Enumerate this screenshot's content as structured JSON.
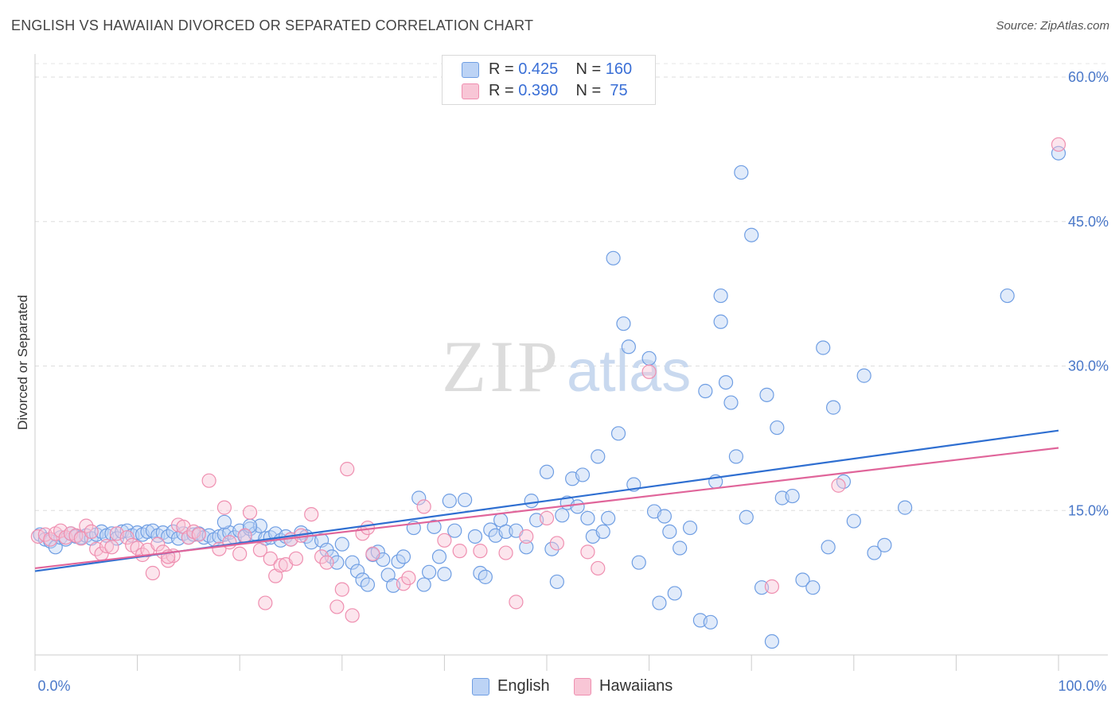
{
  "title": "ENGLISH VS HAWAIIAN DIVORCED OR SEPARATED CORRELATION CHART",
  "source": "Source: ZipAtlas.com",
  "watermark": {
    "zip": "ZIP",
    "atlas": "atlas"
  },
  "legend": {
    "english": {
      "r_label": "R = ",
      "r_value": "0.425",
      "n_label": "N = ",
      "n_value": "160"
    },
    "hawaiians": {
      "r_label": "R = ",
      "r_value": "0.390",
      "n_label": "N = ",
      "n_value": " 75"
    }
  },
  "chart_data": {
    "type": "scatter",
    "title": "ENGLISH VS HAWAIIAN DIVORCED OR SEPARATED CORRELATION CHART",
    "xlabel": "",
    "ylabel": "Divorced or Separated",
    "xlim": [
      0,
      100
    ],
    "ylim": [
      0,
      60
    ],
    "x_tick_labels": [
      "0.0%",
      "100.0%"
    ],
    "y_ticks": [
      15,
      30,
      45,
      60
    ],
    "y_tick_labels": [
      "15.0%",
      "30.0%",
      "45.0%",
      "60.0%"
    ],
    "grid": true,
    "legend_position": "top-center",
    "series": [
      {
        "name": "English",
        "color": "#6f9ee3",
        "trend": {
          "x": [
            0,
            100
          ],
          "y": [
            8.7,
            23.3
          ]
        },
        "points": [
          [
            0.5,
            12.5
          ],
          [
            1,
            12
          ],
          [
            1.5,
            11.8
          ],
          [
            2,
            11.2
          ],
          [
            2.5,
            12.2
          ],
          [
            3,
            12
          ],
          [
            3.5,
            12.6
          ],
          [
            4,
            12.3
          ],
          [
            4.5,
            12.2
          ],
          [
            5,
            12.4
          ],
          [
            5.5,
            12.1
          ],
          [
            6,
            12.5
          ],
          [
            6.5,
            12.8
          ],
          [
            7,
            12.4
          ],
          [
            7.5,
            12.6
          ],
          [
            8,
            12.1
          ],
          [
            8.5,
            12.8
          ],
          [
            9,
            12.9
          ],
          [
            9.5,
            12.4
          ],
          [
            10,
            12.7
          ],
          [
            10.5,
            12.5
          ],
          [
            11,
            12.8
          ],
          [
            11.5,
            12.9
          ],
          [
            12,
            12.4
          ],
          [
            12.5,
            12.7
          ],
          [
            13,
            12.3
          ],
          [
            13.5,
            12.8
          ],
          [
            14,
            12.1
          ],
          [
            14.5,
            12.6
          ],
          [
            15,
            12.2
          ],
          [
            15.5,
            12.5
          ],
          [
            16,
            12.6
          ],
          [
            16.5,
            12.2
          ],
          [
            17,
            12.4
          ],
          [
            17.5,
            12.0
          ],
          [
            18,
            12.3
          ],
          [
            18.5,
            12.5
          ],
          [
            19,
            12.7
          ],
          [
            19.5,
            12.2
          ],
          [
            20,
            12.9
          ],
          [
            20.5,
            12.3
          ],
          [
            21,
            13.1
          ],
          [
            21.5,
            12.6
          ],
          [
            22,
            13.4
          ],
          [
            22.5,
            12.1
          ],
          [
            23,
            12.2
          ],
          [
            23.5,
            12.6
          ],
          [
            24,
            11.9
          ],
          [
            24.5,
            12.3
          ],
          [
            25,
            12.0
          ],
          [
            26,
            12.7
          ],
          [
            26.5,
            12.3
          ],
          [
            27,
            11.7
          ],
          [
            28,
            11.9
          ],
          [
            28.5,
            10.9
          ],
          [
            29,
            10.2
          ],
          [
            29.5,
            9.6
          ],
          [
            30,
            11.5
          ],
          [
            31,
            9.6
          ],
          [
            31.5,
            8.7
          ],
          [
            32,
            7.8
          ],
          [
            32.5,
            7.3
          ],
          [
            33,
            10.4
          ],
          [
            33.5,
            10.7
          ],
          [
            34,
            9.9
          ],
          [
            34.5,
            8.3
          ],
          [
            35,
            7.2
          ],
          [
            35.5,
            9.7
          ],
          [
            36,
            10.2
          ],
          [
            37,
            13.2
          ],
          [
            37.5,
            16.3
          ],
          [
            38,
            7.3
          ],
          [
            38.5,
            8.6
          ],
          [
            39,
            13.3
          ],
          [
            39.5,
            10.2
          ],
          [
            40,
            8.4
          ],
          [
            40.5,
            16.0
          ],
          [
            41,
            12.9
          ],
          [
            42,
            16.1
          ],
          [
            43,
            12.3
          ],
          [
            43.5,
            8.5
          ],
          [
            44,
            8.1
          ],
          [
            44.5,
            13.0
          ],
          [
            45,
            12.4
          ],
          [
            45.5,
            14.0
          ],
          [
            46,
            12.8
          ],
          [
            47,
            12.9
          ],
          [
            48,
            11.2
          ],
          [
            48.5,
            16.0
          ],
          [
            49,
            14.0
          ],
          [
            50,
            19.0
          ],
          [
            50.5,
            11.0
          ],
          [
            51,
            7.6
          ],
          [
            51.5,
            14.5
          ],
          [
            52,
            15.8
          ],
          [
            52.5,
            18.3
          ],
          [
            53,
            15.4
          ],
          [
            53.5,
            18.7
          ],
          [
            54,
            14.2
          ],
          [
            54.5,
            12.3
          ],
          [
            55,
            20.6
          ],
          [
            55.5,
            12.8
          ],
          [
            56,
            14.2
          ],
          [
            57,
            23.0
          ],
          [
            57.5,
            34.4
          ],
          [
            58,
            32.0
          ],
          [
            58.5,
            17.7
          ],
          [
            59,
            9.6
          ],
          [
            60,
            30.8
          ],
          [
            60.5,
            14.9
          ],
          [
            61,
            5.4
          ],
          [
            61.5,
            14.4
          ],
          [
            62,
            12.8
          ],
          [
            62.5,
            6.4
          ],
          [
            63,
            11.1
          ],
          [
            64,
            13.2
          ],
          [
            65,
            3.6
          ],
          [
            65.5,
            27.4
          ],
          [
            66,
            3.4
          ],
          [
            66.5,
            18.0
          ],
          [
            67,
            34.6
          ],
          [
            67.5,
            28.3
          ],
          [
            68,
            26.2
          ],
          [
            68.5,
            20.6
          ],
          [
            69,
            50.1
          ],
          [
            69.5,
            14.3
          ],
          [
            70,
            43.6
          ],
          [
            71,
            7.0
          ],
          [
            71.5,
            27.0
          ],
          [
            72,
            1.4
          ],
          [
            72.5,
            23.6
          ],
          [
            73,
            16.3
          ],
          [
            74,
            16.5
          ],
          [
            75,
            7.8
          ],
          [
            76,
            7.0
          ],
          [
            77,
            31.9
          ],
          [
            77.5,
            11.2
          ],
          [
            78,
            25.7
          ],
          [
            79,
            18.0
          ],
          [
            80,
            13.9
          ],
          [
            81,
            29.0
          ],
          [
            82,
            10.6
          ],
          [
            83,
            11.4
          ],
          [
            85,
            15.3
          ],
          [
            56.5,
            41.2
          ],
          [
            67,
            37.3
          ],
          [
            95,
            37.3
          ],
          [
            100,
            52.1
          ],
          [
            18.5,
            13.8
          ],
          [
            21,
            13.4
          ]
        ]
      },
      {
        "name": "Hawaiians",
        "color": "#ef8fb0",
        "trend": {
          "x": [
            0,
            100
          ],
          "y": [
            9.0,
            21.5
          ]
        },
        "points": [
          [
            0.3,
            12.3
          ],
          [
            1,
            12.5
          ],
          [
            1.5,
            12.0
          ],
          [
            2,
            12.6
          ],
          [
            2.5,
            12.9
          ],
          [
            3,
            12.2
          ],
          [
            3.5,
            12.6
          ],
          [
            4,
            12.4
          ],
          [
            4.5,
            12.1
          ],
          [
            5,
            13.4
          ],
          [
            5.5,
            12.8
          ],
          [
            6,
            11.0
          ],
          [
            6.5,
            10.5
          ],
          [
            7,
            11.3
          ],
          [
            7.5,
            11.2
          ],
          [
            8,
            12.6
          ],
          [
            9,
            12.2
          ],
          [
            9.5,
            11.4
          ],
          [
            10,
            11.1
          ],
          [
            10.5,
            10.4
          ],
          [
            11,
            10.9
          ],
          [
            11.5,
            8.5
          ],
          [
            12,
            11.5
          ],
          [
            12.5,
            10.7
          ],
          [
            13,
            9.8
          ],
          [
            13.5,
            10.3
          ],
          [
            14,
            13.5
          ],
          [
            14.5,
            13.3
          ],
          [
            15,
            12.2
          ],
          [
            15.5,
            12.8
          ],
          [
            16,
            12.5
          ],
          [
            17,
            18.1
          ],
          [
            18,
            11.0
          ],
          [
            18.5,
            15.3
          ],
          [
            19,
            11.7
          ],
          [
            20,
            10.5
          ],
          [
            20.5,
            12.4
          ],
          [
            21,
            14.8
          ],
          [
            22,
            10.9
          ],
          [
            22.5,
            5.4
          ],
          [
            23,
            10.0
          ],
          [
            23.5,
            8.2
          ],
          [
            24,
            9.3
          ],
          [
            24.5,
            9.4
          ],
          [
            25,
            12.0
          ],
          [
            25.5,
            10.0
          ],
          [
            26,
            12.4
          ],
          [
            27,
            14.6
          ],
          [
            28,
            10.2
          ],
          [
            28.5,
            9.6
          ],
          [
            29.5,
            5.0
          ],
          [
            30,
            6.8
          ],
          [
            30.5,
            19.3
          ],
          [
            31,
            4.1
          ],
          [
            32,
            12.6
          ],
          [
            32.5,
            13.2
          ],
          [
            33,
            10.5
          ],
          [
            36,
            7.4
          ],
          [
            36.5,
            8.0
          ],
          [
            38,
            15.4
          ],
          [
            40,
            11.9
          ],
          [
            41.5,
            10.8
          ],
          [
            43.5,
            10.8
          ],
          [
            46,
            10.6
          ],
          [
            47,
            5.5
          ],
          [
            48,
            12.3
          ],
          [
            50,
            14.2
          ],
          [
            51,
            11.6
          ],
          [
            54,
            10.7
          ],
          [
            55,
            9.0
          ],
          [
            60,
            29.4
          ],
          [
            72,
            7.1
          ],
          [
            78.5,
            17.6
          ],
          [
            100,
            53.0
          ],
          [
            13,
            10.2
          ]
        ]
      }
    ]
  }
}
